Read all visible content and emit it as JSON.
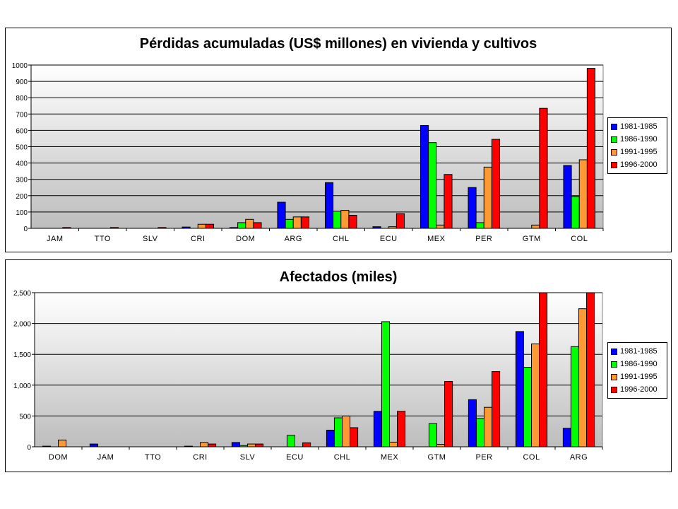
{
  "chart_data": [
    {
      "type": "bar",
      "title": "Pérdidas acumuladas (US$ millones) en vivienda y cultivos",
      "categories": [
        "JAM",
        "TTO",
        "SLV",
        "CRI",
        "DOM",
        "ARG",
        "CHL",
        "ECU",
        "MEX",
        "PER",
        "GTM",
        "COL"
      ],
      "series": [
        {
          "name": "1981-1985",
          "color": "#0000ff",
          "values": [
            0,
            0,
            0,
            8,
            5,
            160,
            280,
            10,
            630,
            250,
            0,
            385
          ]
        },
        {
          "name": "1986-1990",
          "color": "#00ff00",
          "values": [
            0,
            0,
            0,
            0,
            35,
            55,
            105,
            0,
            525,
            35,
            0,
            195
          ]
        },
        {
          "name": "1991-1995",
          "color": "#ff9933",
          "values": [
            0,
            0,
            0,
            25,
            55,
            70,
            110,
            10,
            20,
            375,
            20,
            420
          ]
        },
        {
          "name": "1996-2000",
          "color": "#ff0000",
          "values": [
            5,
            5,
            5,
            25,
            35,
            70,
            80,
            90,
            330,
            545,
            735,
            980
          ]
        }
      ],
      "ylim": [
        0,
        1000
      ],
      "yticks": [
        "0",
        "100",
        "200",
        "300",
        "400",
        "500",
        "600",
        "700",
        "800",
        "900",
        "1000"
      ],
      "ytick_values": [
        0,
        100,
        200,
        300,
        400,
        500,
        600,
        700,
        800,
        900,
        1000
      ],
      "grid": true,
      "legend": "right"
    },
    {
      "type": "bar",
      "title": "Afectados (miles)",
      "categories": [
        "DOM",
        "JAM",
        "TTO",
        "CRI",
        "SLV",
        "ECU",
        "CHL",
        "MEX",
        "GTM",
        "PER",
        "COL",
        "ARG"
      ],
      "series": [
        {
          "name": "1981-1985",
          "color": "#0000ff",
          "values": [
            10,
            45,
            0,
            10,
            70,
            0,
            270,
            575,
            0,
            765,
            1870,
            300
          ]
        },
        {
          "name": "1986-1990",
          "color": "#00ff00",
          "values": [
            0,
            0,
            0,
            0,
            20,
            185,
            470,
            2030,
            375,
            460,
            1290,
            1625
          ]
        },
        {
          "name": "1991-1995",
          "color": "#ff9933",
          "values": [
            110,
            0,
            0,
            70,
            45,
            0,
            500,
            75,
            40,
            640,
            1670,
            2240
          ]
        },
        {
          "name": "1996-2000",
          "color": "#ff0000",
          "values": [
            0,
            0,
            0,
            45,
            45,
            65,
            310,
            575,
            1060,
            1220,
            2550,
            2550
          ]
        }
      ],
      "ylim": [
        0,
        2500
      ],
      "yticks": [
        "0",
        "500",
        "1,000",
        "1,500",
        "2,000",
        "2,500"
      ],
      "ytick_values": [
        0,
        500,
        1000,
        1500,
        2000,
        2500
      ],
      "grid": true,
      "legend": "right"
    }
  ]
}
